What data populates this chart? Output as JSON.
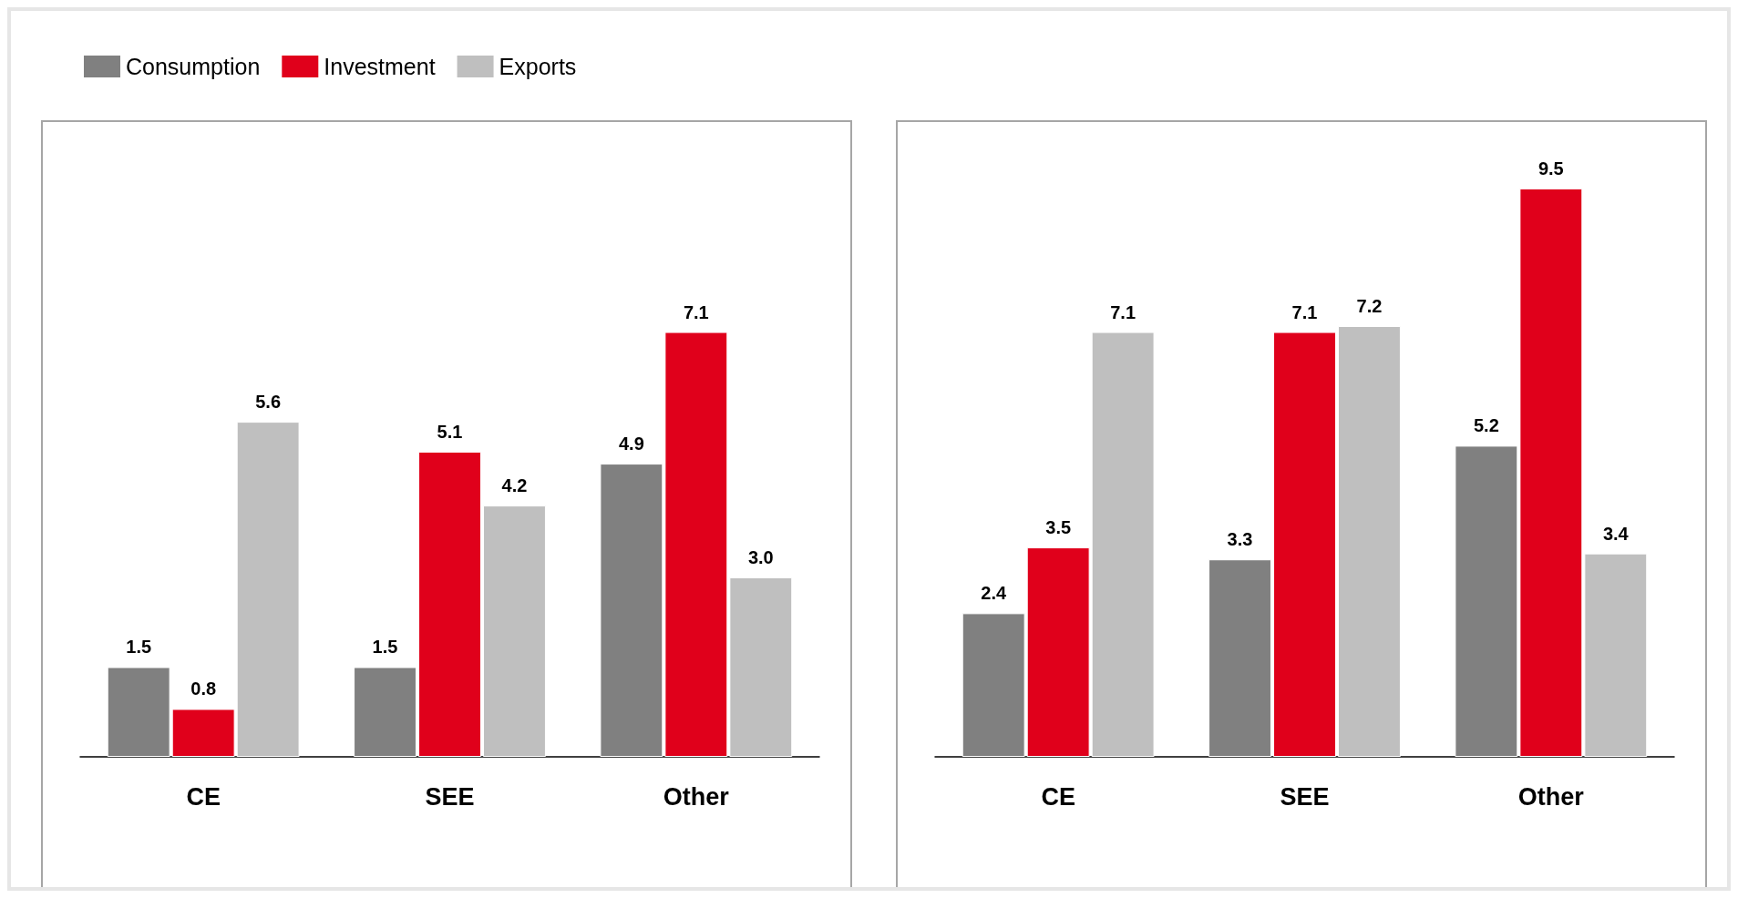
{
  "chart_data": [
    {
      "type": "bar",
      "categories": [
        "CE",
        "SEE",
        "Other"
      ],
      "legend": "top left",
      "series": [
        {
          "name": "Consumption",
          "color": "#808080",
          "values": [
            1.5,
            1.5,
            4.9
          ],
          "value_labels": [
            "1.5",
            "1.5",
            "4.9"
          ]
        },
        {
          "name": "Investment",
          "color": "#e0001b",
          "values": [
            0.8,
            5.1,
            7.1
          ],
          "value_labels": [
            "0.8",
            "5.1",
            "7.1"
          ]
        },
        {
          "name": "Exports",
          "color": "#bfbfbf",
          "values": [
            5.6,
            4.2,
            3.0
          ],
          "value_labels": [
            "5.6",
            "4.2",
            "3.0"
          ]
        }
      ]
    },
    {
      "type": "bar",
      "categories": [
        "CE",
        "SEE",
        "Other"
      ],
      "series": [
        {
          "color": "#808080",
          "values": [
            2.4,
            3.3,
            5.2
          ],
          "value_labels": [
            "2.4",
            "3.3",
            "5.2"
          ]
        },
        {
          "color": "#e0001b",
          "values": [
            3.5,
            7.1,
            9.5
          ],
          "value_labels": [
            "3.5",
            "7.1",
            "9.5"
          ]
        },
        {
          "color": "#bfbfbf",
          "values": [
            7.1,
            7.2,
            3.4
          ],
          "value_labels": [
            "7.1",
            "7.2",
            "3.4"
          ]
        }
      ]
    }
  ]
}
